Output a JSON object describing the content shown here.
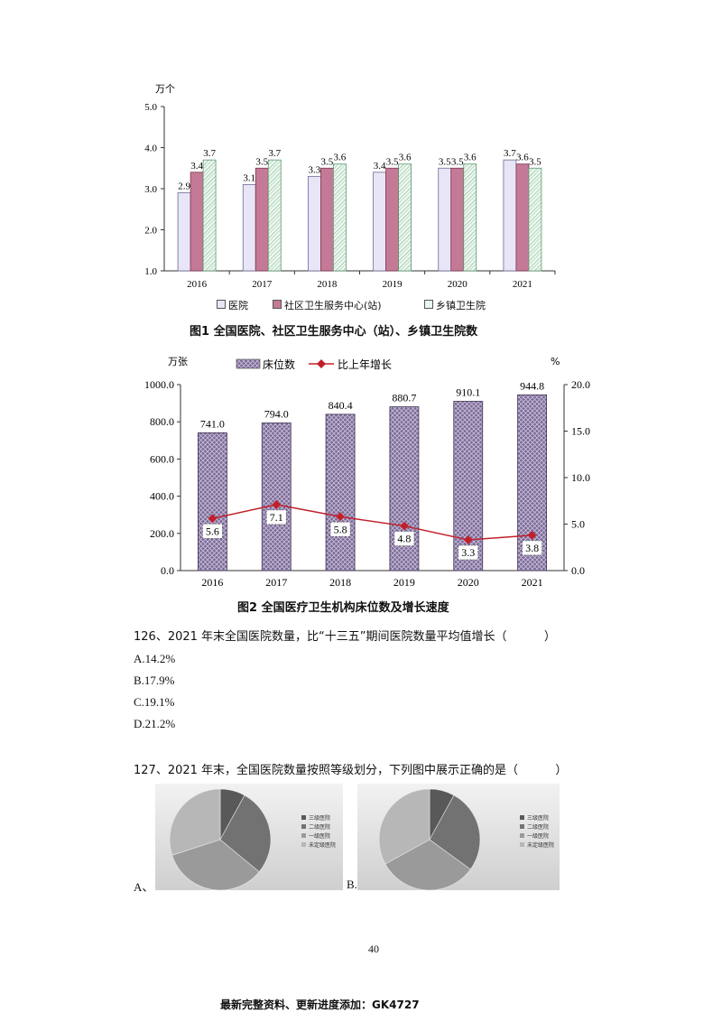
{
  "chart_data": [
    {
      "type": "bar",
      "unit_label": "万个",
      "title": "图1  全国医院、社区卫生服务中心（站）、乡镇卫生院数",
      "categories": [
        "2016",
        "2017",
        "2018",
        "2019",
        "2020",
        "2021"
      ],
      "ylim": [
        1.0,
        5.0
      ],
      "yticks": [
        "1.0",
        "2.0",
        "3.0",
        "4.0",
        "5.0"
      ],
      "series": [
        {
          "name": "医院",
          "values": [
            2.9,
            3.1,
            3.3,
            3.4,
            3.5,
            3.7
          ],
          "color": "#e8e6f6"
        },
        {
          "name": "社区卫生服务中心(站)",
          "values": [
            3.4,
            3.5,
            3.5,
            3.5,
            3.5,
            3.6
          ],
          "color": "#c47a96"
        },
        {
          "name": "乡镇卫生院",
          "values": [
            3.7,
            3.7,
            3.6,
            3.6,
            3.6,
            3.5
          ],
          "color": "#e9f5ee"
        }
      ],
      "value_labels": [
        [
          "2.9",
          "3.1",
          "3.3",
          "3.4",
          "3.5",
          "3.7"
        ],
        [
          "3.4",
          "3.5",
          "3.5",
          "3.5",
          "3.5",
          "3.6"
        ],
        [
          "3.7",
          "3.7",
          "3.6",
          "3.6",
          "3.6",
          "3.5"
        ]
      ]
    },
    {
      "type": "bar",
      "left_unit": "万张",
      "right_unit": "%",
      "title": "图2   全国医疗卫生机构床位数及增长速度",
      "categories": [
        "2016",
        "2017",
        "2018",
        "2019",
        "2020",
        "2021"
      ],
      "ylim": [
        0,
        1000
      ],
      "y2lim": [
        0,
        20
      ],
      "yticks": [
        "0.0",
        "200.0",
        "400.0",
        "600.0",
        "800.0",
        "1000.0"
      ],
      "y2ticks": [
        "0.0",
        "5.0",
        "10.0",
        "15.0",
        "20.0"
      ],
      "series": [
        {
          "name": "床位数",
          "values": [
            741.0,
            794.0,
            840.4,
            880.7,
            910.1,
            944.8
          ],
          "color": "#8f7fa8"
        },
        {
          "name": "比上年增长",
          "values": [
            5.6,
            7.1,
            5.8,
            4.8,
            3.3,
            3.8
          ],
          "color": "#c0202a"
        }
      ],
      "bar_labels": [
        "741.0",
        "794.0",
        "840.4",
        "880.7",
        "910.1",
        "944.8"
      ],
      "line_labels": [
        "5.6",
        "7.1",
        "5.8",
        "4.8",
        "3.3",
        "3.8"
      ]
    }
  ],
  "questions": [
    {
      "stem": "126、2021 年末全国医院数量，比“十三五”期间医院数量平均值增长（          ）",
      "options": [
        "A.14.2%",
        "B.17.9%",
        "C.19.1%",
        "D.21.2%"
      ]
    },
    {
      "stem": "127、2021 年末，全国医院数量按照等级划分，下列图中展示正确的是（          ）",
      "option_labels": [
        "A、",
        "B."
      ]
    }
  ],
  "pies": [
    {
      "legend": [
        "三级医院",
        "二级医院",
        "一级医院",
        "未定级医院"
      ],
      "values": [
        8,
        28,
        34,
        30
      ],
      "colors": [
        "#595959",
        "#727272",
        "#9a9a9a",
        "#b7b7b7"
      ]
    },
    {
      "legend": [
        "三级医院",
        "二级医院",
        "一级医院",
        "未定级医院"
      ],
      "values": [
        8,
        27,
        32,
        33
      ],
      "colors": [
        "#595959",
        "#727272",
        "#9a9a9a",
        "#b7b7b7"
      ]
    }
  ],
  "page_number": "40",
  "footer": "最新完整资料、更新进度添加：GK4727"
}
